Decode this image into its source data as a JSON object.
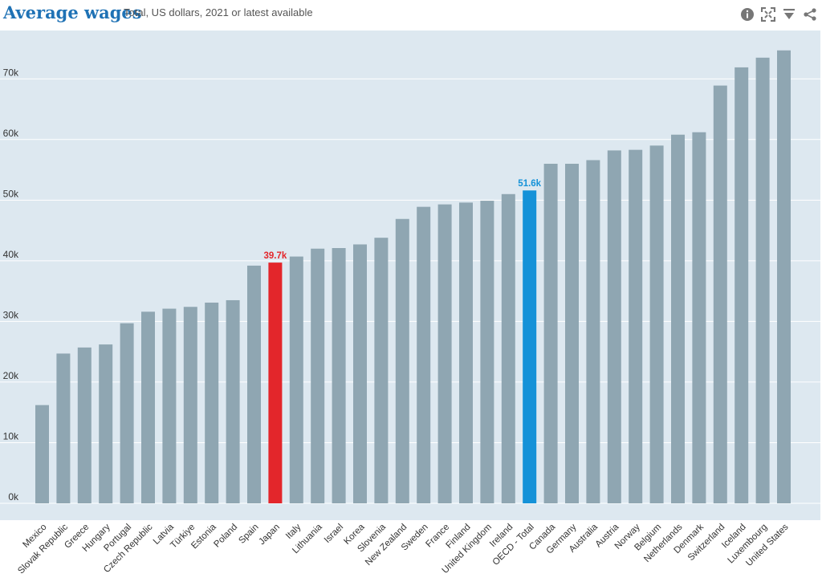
{
  "title": "Average wages",
  "subtitle": "Total, US dollars, 2021 or latest available",
  "toolbar": {
    "icons": [
      "info-icon",
      "fullscreen-icon",
      "download-icon",
      "share-icon"
    ]
  },
  "colors": {
    "plot_background": "#dde8f0",
    "bar_default": "#8fa6b2",
    "bar_highlight_japan": "#e3262b",
    "bar_highlight_oecd": "#1592d8",
    "gridline": "#ffffff"
  },
  "chart_data": {
    "type": "bar",
    "title": "Average wages",
    "subtitle": "Total, US dollars, 2021 or latest available",
    "xlabel": "",
    "ylabel": "",
    "ylim": [
      0,
      75000
    ],
    "grid": true,
    "yticks": [
      0,
      10000,
      20000,
      30000,
      40000,
      50000,
      60000,
      70000
    ],
    "ytick_labels": [
      "0k",
      "10k",
      "20k",
      "30k",
      "40k",
      "50k",
      "60k",
      "70k"
    ],
    "categories": [
      "Mexico",
      "Slovak Republic",
      "Greece",
      "Hungary",
      "Portugal",
      "Czech Republic",
      "Latvia",
      "Türkiye",
      "Estonia",
      "Poland",
      "Spain",
      "Japan",
      "Italy",
      "Lithuania",
      "Israel",
      "Korea",
      "Slovenia",
      "New Zealand",
      "Sweden",
      "France",
      "Finland",
      "United Kingdom",
      "Ireland",
      "OECD - Total",
      "Canada",
      "Germany",
      "Australia",
      "Austria",
      "Norway",
      "Belgium",
      "Netherlands",
      "Denmark",
      "Switzerland",
      "Iceland",
      "Luxembourg",
      "United States"
    ],
    "values": [
      16200,
      24700,
      25700,
      26200,
      29700,
      31600,
      32100,
      32400,
      33100,
      33500,
      39200,
      39700,
      40700,
      42000,
      42100,
      42700,
      43800,
      46900,
      48900,
      49300,
      49600,
      49900,
      51000,
      51600,
      56000,
      56000,
      56600,
      58200,
      58300,
      59000,
      60800,
      61200,
      68900,
      71900,
      73500,
      74700
    ],
    "highlights": [
      {
        "category": "Japan",
        "color": "#e3262b",
        "label": "39.7k"
      },
      {
        "category": "OECD - Total",
        "color": "#1592d8",
        "label": "51.6k"
      }
    ]
  }
}
